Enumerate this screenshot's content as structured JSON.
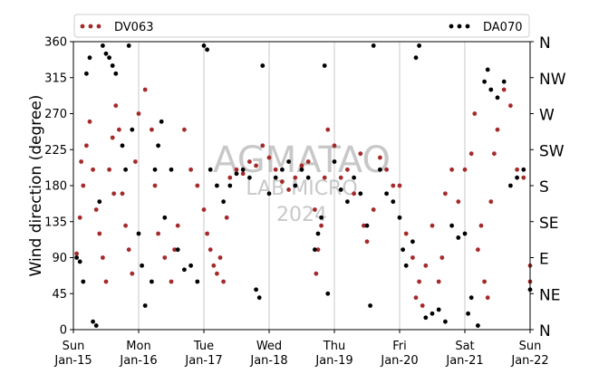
{
  "chart_data": {
    "type": "scatter",
    "ylabel": "Wind direction (degree)",
    "xlabel": "",
    "ylim": [
      0,
      360
    ],
    "yticks": [
      0,
      45,
      90,
      135,
      180,
      225,
      270,
      315,
      360
    ],
    "right_axis_labels": [
      "N",
      "NE",
      "E",
      "SE",
      "S",
      "SW",
      "W",
      "NW",
      "N"
    ],
    "xlim_days": [
      15,
      22
    ],
    "x_tick_labels": [
      {
        "day": "Sun",
        "date": "Jan-15"
      },
      {
        "day": "Mon",
        "date": "Jan-16"
      },
      {
        "day": "Tue",
        "date": "Jan-17"
      },
      {
        "day": "Wed",
        "date": "Jan-18"
      },
      {
        "day": "Thu",
        "date": "Jan-19"
      },
      {
        "day": "Fri",
        "date": "Jan-20"
      },
      {
        "day": "Sat",
        "date": "Jan-21"
      },
      {
        "day": "Sun",
        "date": "Jan-22"
      }
    ],
    "grid": "vertical",
    "legend_position": "top",
    "watermark": [
      "AGMATAO",
      "LAB MICRO",
      "2024"
    ],
    "series": [
      {
        "name": "DV063",
        "color": "#a52a2a",
        "points": [
          [
            15.05,
            95
          ],
          [
            15.1,
            140
          ],
          [
            15.15,
            180
          ],
          [
            15.2,
            230
          ],
          [
            15.25,
            260
          ],
          [
            15.3,
            200
          ],
          [
            15.35,
            150
          ],
          [
            15.4,
            120
          ],
          [
            15.45,
            90
          ],
          [
            15.5,
            60
          ],
          [
            15.55,
            200
          ],
          [
            15.6,
            240
          ],
          [
            15.65,
            280
          ],
          [
            15.7,
            250
          ],
          [
            15.75,
            170
          ],
          [
            15.8,
            130
          ],
          [
            15.85,
            100
          ],
          [
            15.9,
            70
          ],
          [
            15.95,
            210
          ],
          [
            16.0,
            270
          ],
          [
            16.1,
            300
          ],
          [
            16.2,
            250
          ],
          [
            16.25,
            180
          ],
          [
            16.3,
            120
          ],
          [
            16.4,
            90
          ],
          [
            16.5,
            60
          ],
          [
            16.6,
            130
          ],
          [
            16.7,
            250
          ],
          [
            16.8,
            200
          ],
          [
            16.9,
            180
          ],
          [
            17.0,
            150
          ],
          [
            17.05,
            120
          ],
          [
            17.1,
            100
          ],
          [
            17.15,
            80
          ],
          [
            17.2,
            70
          ],
          [
            17.3,
            60
          ],
          [
            17.35,
            140
          ],
          [
            17.4,
            190
          ],
          [
            17.5,
            200
          ],
          [
            17.6,
            195
          ],
          [
            17.7,
            210
          ],
          [
            17.8,
            205
          ],
          [
            17.9,
            230
          ],
          [
            18.0,
            215
          ],
          [
            18.1,
            200
          ],
          [
            18.2,
            185
          ],
          [
            18.3,
            175
          ],
          [
            18.4,
            190
          ],
          [
            18.5,
            205
          ],
          [
            18.6,
            210
          ],
          [
            18.7,
            150
          ],
          [
            18.75,
            100
          ],
          [
            18.8,
            130
          ],
          [
            18.85,
            190
          ],
          [
            18.9,
            250
          ],
          [
            19.0,
            230
          ],
          [
            19.1,
            190
          ],
          [
            19.2,
            200
          ],
          [
            19.3,
            170
          ],
          [
            19.4,
            220
          ],
          [
            19.5,
            110
          ],
          [
            19.6,
            150
          ],
          [
            19.7,
            215
          ],
          [
            19.8,
            200
          ],
          [
            19.9,
            180
          ],
          [
            20.0,
            180
          ],
          [
            20.1,
            120
          ],
          [
            20.2,
            90
          ],
          [
            20.3,
            60
          ],
          [
            20.35,
            30
          ],
          [
            20.4,
            80
          ],
          [
            20.5,
            130
          ],
          [
            20.6,
            60
          ],
          [
            20.7,
            170
          ],
          [
            20.8,
            200
          ],
          [
            20.9,
            160
          ],
          [
            21.0,
            200
          ],
          [
            21.1,
            220
          ],
          [
            21.15,
            270
          ],
          [
            21.2,
            100
          ],
          [
            21.3,
            60
          ],
          [
            21.35,
            40
          ],
          [
            21.4,
            160
          ],
          [
            21.5,
            250
          ],
          [
            21.6,
            300
          ],
          [
            21.7,
            280
          ],
          [
            21.8,
            200
          ],
          [
            21.9,
            190
          ],
          [
            22.0,
            80
          ],
          [
            22.0,
            60
          ],
          [
            15.12,
            210
          ],
          [
            15.62,
            170
          ],
          [
            16.55,
            100
          ],
          [
            17.25,
            90
          ],
          [
            18.72,
            70
          ],
          [
            19.45,
            130
          ],
          [
            20.25,
            40
          ],
          [
            20.65,
            90
          ],
          [
            21.25,
            130
          ],
          [
            21.45,
            220
          ]
        ]
      },
      {
        "name": "DA070",
        "color": "#000000",
        "points": [
          [
            15.05,
            90
          ],
          [
            15.1,
            85
          ],
          [
            15.15,
            60
          ],
          [
            15.2,
            320
          ],
          [
            15.25,
            340
          ],
          [
            15.3,
            10
          ],
          [
            15.35,
            5
          ],
          [
            15.4,
            160
          ],
          [
            15.45,
            355
          ],
          [
            15.5,
            345
          ],
          [
            15.55,
            340
          ],
          [
            15.6,
            330
          ],
          [
            15.65,
            320
          ],
          [
            15.75,
            230
          ],
          [
            15.8,
            200
          ],
          [
            15.9,
            250
          ],
          [
            16.0,
            120
          ],
          [
            16.05,
            80
          ],
          [
            16.1,
            30
          ],
          [
            16.2,
            60
          ],
          [
            16.25,
            200
          ],
          [
            16.3,
            230
          ],
          [
            16.4,
            140
          ],
          [
            16.5,
            200
          ],
          [
            16.6,
            100
          ],
          [
            16.7,
            75
          ],
          [
            16.8,
            80
          ],
          [
            16.9,
            60
          ],
          [
            17.0,
            355
          ],
          [
            17.05,
            350
          ],
          [
            17.1,
            200
          ],
          [
            17.2,
            180
          ],
          [
            17.3,
            160
          ],
          [
            17.4,
            180
          ],
          [
            17.5,
            195
          ],
          [
            17.6,
            200
          ],
          [
            17.7,
            190
          ],
          [
            17.8,
            50
          ],
          [
            17.85,
            40
          ],
          [
            17.9,
            330
          ],
          [
            18.0,
            170
          ],
          [
            18.1,
            190
          ],
          [
            18.2,
            200
          ],
          [
            18.3,
            210
          ],
          [
            18.4,
            180
          ],
          [
            18.5,
            200
          ],
          [
            18.6,
            190
          ],
          [
            18.7,
            100
          ],
          [
            18.75,
            120
          ],
          [
            18.8,
            140
          ],
          [
            18.85,
            330
          ],
          [
            18.9,
            45
          ],
          [
            19.0,
            210
          ],
          [
            19.1,
            175
          ],
          [
            19.2,
            160
          ],
          [
            19.3,
            190
          ],
          [
            19.4,
            170
          ],
          [
            19.5,
            130
          ],
          [
            19.55,
            30
          ],
          [
            19.6,
            355
          ],
          [
            19.7,
            200
          ],
          [
            19.8,
            170
          ],
          [
            19.9,
            160
          ],
          [
            20.0,
            140
          ],
          [
            20.05,
            100
          ],
          [
            20.1,
            80
          ],
          [
            20.2,
            110
          ],
          [
            20.25,
            340
          ],
          [
            20.3,
            355
          ],
          [
            20.4,
            15
          ],
          [
            20.5,
            20
          ],
          [
            20.6,
            25
          ],
          [
            20.7,
            10
          ],
          [
            20.8,
            130
          ],
          [
            20.9,
            115
          ],
          [
            21.0,
            120
          ],
          [
            21.05,
            20
          ],
          [
            21.1,
            40
          ],
          [
            21.2,
            5
          ],
          [
            21.3,
            310
          ],
          [
            21.35,
            325
          ],
          [
            21.4,
            300
          ],
          [
            21.5,
            290
          ],
          [
            21.6,
            310
          ],
          [
            21.7,
            180
          ],
          [
            21.8,
            190
          ],
          [
            21.9,
            200
          ],
          [
            22.0,
            50
          ],
          [
            15.85,
            355
          ],
          [
            16.35,
            260
          ]
        ]
      }
    ]
  }
}
